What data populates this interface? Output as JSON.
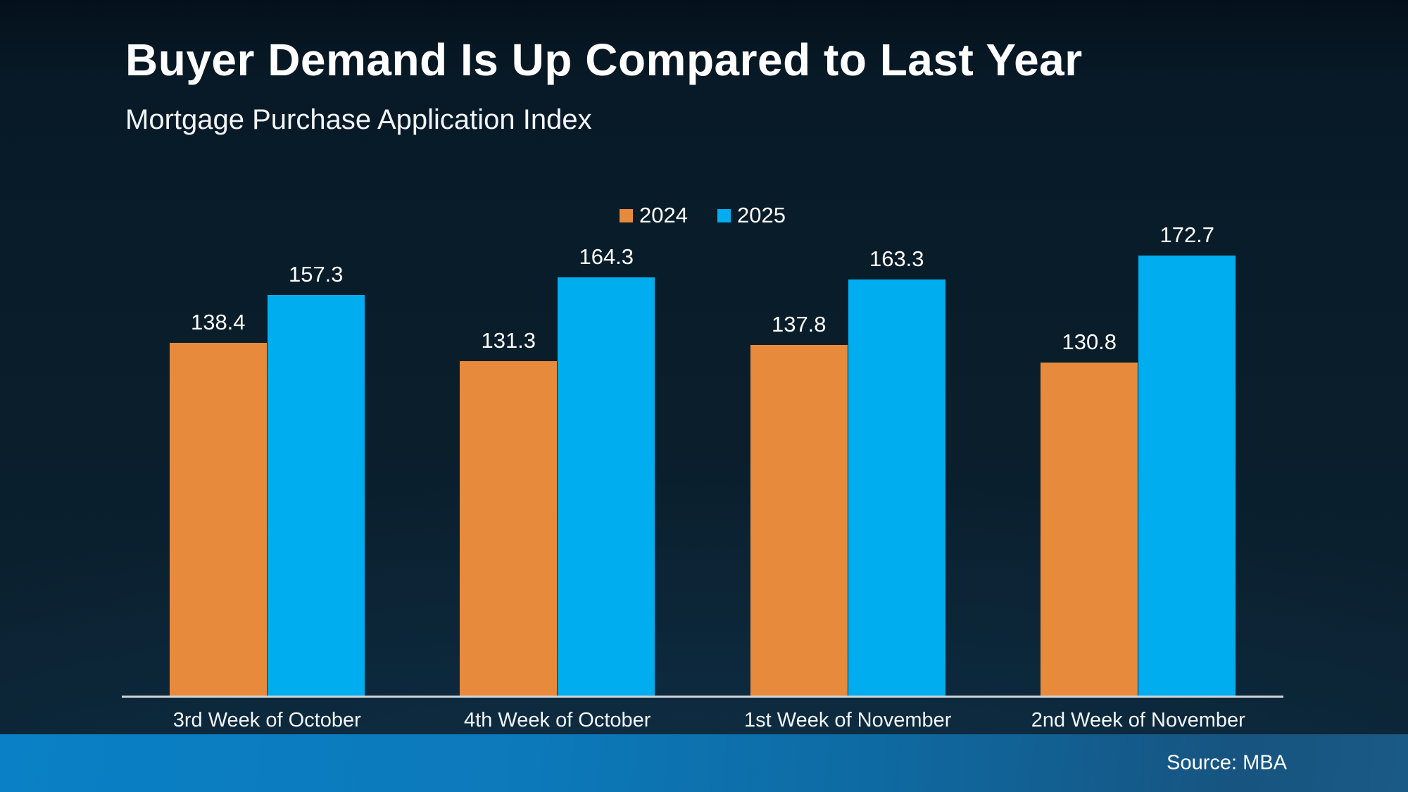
{
  "page": {
    "title": "Buyer Demand Is Up Compared to Last Year",
    "subtitle": "Mortgage Purchase Application Index",
    "source_label": "Source: MBA"
  },
  "colors": {
    "background_top": "#081a27",
    "background_bottom": "#0c2435",
    "series_2024": "#E88A3C",
    "series_2025": "#00AEEF",
    "axis_line": "#d0d3d6",
    "text": "#ffffff",
    "footer_gradient_left": "#0a80c6",
    "footer_gradient_right": "#1a5a86"
  },
  "chart_data": {
    "type": "bar",
    "title": "Buyer Demand Is Up Compared to Last Year",
    "subtitle": "Mortgage Purchase Application Index",
    "categories": [
      "3rd Week of October",
      "4th Week of October",
      "1st Week of November",
      "2nd Week of November"
    ],
    "series": [
      {
        "name": "2024",
        "color": "#E88A3C",
        "values": [
          138.4,
          131.3,
          137.8,
          130.8
        ]
      },
      {
        "name": "2025",
        "color": "#00AEEF",
        "values": [
          157.3,
          164.3,
          163.3,
          172.7
        ]
      }
    ],
    "xlabel": "",
    "ylabel": "",
    "ylim": [
      0,
      180
    ],
    "grid": false,
    "legend_position": "top-center",
    "value_labels": true,
    "source": "Source: MBA"
  }
}
